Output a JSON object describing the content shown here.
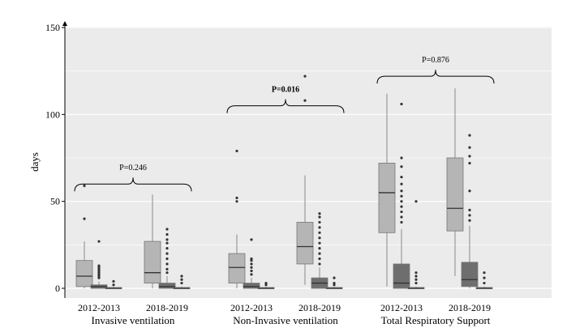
{
  "chart_data": {
    "type": "box",
    "ylabel": "days",
    "ylim": [
      0,
      150
    ],
    "yticks": [
      "0",
      "50",
      "100",
      "150"
    ],
    "grid": true,
    "fill_colors": {
      "light": "#b5b5b5",
      "dark": "#6e6e6e",
      "panel": "#ebebeb",
      "gridline": "#ffffff"
    },
    "groups": [
      {
        "name": "Invasive ventilation",
        "subgroups": [
          "2012-2013",
          "2018-2019"
        ],
        "annotation": "P=0.246",
        "annotation_bold": false,
        "boxes": [
          {
            "subgroup": "2012-2013",
            "fill": "light",
            "whisker_low": 0,
            "q1": 1,
            "median": 7,
            "q3": 16,
            "whisker_high": 27,
            "outliers": [
              40,
              59
            ]
          },
          {
            "subgroup": "2012-2013",
            "fill": "dark",
            "whisker_low": 0,
            "q1": 0,
            "median": 1,
            "q3": 2,
            "whisker_high": 4,
            "outliers": [
              6,
              7,
              8,
              9,
              10,
              11,
              12,
              13,
              27
            ]
          },
          {
            "subgroup": "2012-2013",
            "fill": "light",
            "whisker_low": 0,
            "q1": 0,
            "median": 0,
            "q3": 0.5,
            "whisker_high": 1,
            "outliers": [
              2,
              4
            ]
          },
          {
            "subgroup": "2018-2019",
            "fill": "light",
            "whisker_low": 0,
            "q1": 3,
            "median": 9,
            "q3": 27,
            "whisker_high": 54,
            "outliers": []
          },
          {
            "subgroup": "2018-2019",
            "fill": "dark",
            "whisker_low": 0,
            "q1": 0,
            "median": 1,
            "q3": 3,
            "whisker_high": 7,
            "outliers": [
              9,
              11,
              14,
              17,
              20,
              23,
              26,
              28,
              31,
              34
            ]
          },
          {
            "subgroup": "2018-2019",
            "fill": "light",
            "whisker_low": 0,
            "q1": 0,
            "median": 0,
            "q3": 0.5,
            "whisker_high": 1,
            "outliers": [
              3,
              5,
              7
            ]
          }
        ]
      },
      {
        "name": "Non-Invasive ventilation",
        "subgroups": [
          "2012-2013",
          "2018-2019"
        ],
        "annotation": "P=0.016",
        "annotation_bold": true,
        "boxes": [
          {
            "subgroup": "2012-2013",
            "fill": "light",
            "whisker_low": 0,
            "q1": 3,
            "median": 12,
            "q3": 20,
            "whisker_high": 31,
            "outliers": [
              50,
              52,
              79
            ]
          },
          {
            "subgroup": "2012-2013",
            "fill": "dark",
            "whisker_low": 0,
            "q1": 0,
            "median": 1,
            "q3": 3,
            "whisker_high": 6,
            "outliers": [
              8,
              10,
              12,
              14,
              16,
              17,
              28
            ]
          },
          {
            "subgroup": "2012-2013",
            "fill": "light",
            "whisker_low": 0,
            "q1": 0,
            "median": 0,
            "q3": 0.5,
            "whisker_high": 1,
            "outliers": [
              2,
              3
            ]
          },
          {
            "subgroup": "2018-2019",
            "fill": "light",
            "whisker_low": 2,
            "q1": 14,
            "median": 24,
            "q3": 38,
            "whisker_high": 65,
            "outliers": [
              108,
              122
            ]
          },
          {
            "subgroup": "2018-2019",
            "fill": "dark",
            "whisker_low": 0,
            "q1": 0,
            "median": 3,
            "q3": 6,
            "whisker_high": 12,
            "outliers": [
              14,
              17,
              20,
              23,
              26,
              29,
              32,
              35,
              38,
              41,
              43
            ]
          },
          {
            "subgroup": "2018-2019",
            "fill": "light",
            "whisker_low": 0,
            "q1": 0,
            "median": 0,
            "q3": 0.5,
            "whisker_high": 1,
            "outliers": [
              2,
              3,
              6
            ]
          }
        ]
      },
      {
        "name": "Total Respiratory Support",
        "subgroups": [
          "2012-2013",
          "2018-2019"
        ],
        "annotation": "P=0.876",
        "annotation_bold": false,
        "boxes": [
          {
            "subgroup": "2012-2013",
            "fill": "light",
            "whisker_low": 1,
            "q1": 32,
            "median": 55,
            "q3": 72,
            "whisker_high": 112,
            "outliers": []
          },
          {
            "subgroup": "2012-2013",
            "fill": "dark",
            "whisker_low": 0,
            "q1": 0,
            "median": 3,
            "q3": 14,
            "whisker_high": 34,
            "outliers": [
              38,
              41,
              44,
              47,
              50,
              53,
              56,
              60,
              64,
              70,
              75,
              106
            ]
          },
          {
            "subgroup": "2012-2013",
            "fill": "light",
            "whisker_low": 0,
            "q1": 0,
            "median": 0,
            "q3": 0.5,
            "whisker_high": 1,
            "outliers": [
              3,
              5,
              7,
              9,
              50
            ]
          },
          {
            "subgroup": "2018-2019",
            "fill": "light",
            "whisker_low": 7,
            "q1": 33,
            "median": 46,
            "q3": 75,
            "whisker_high": 115,
            "outliers": []
          },
          {
            "subgroup": "2018-2019",
            "fill": "dark",
            "whisker_low": 0,
            "q1": 1,
            "median": 5,
            "q3": 15,
            "whisker_high": 36,
            "outliers": [
              39,
              42,
              45,
              56,
              72,
              76,
              81,
              88
            ]
          },
          {
            "subgroup": "2018-2019",
            "fill": "light",
            "whisker_low": 0,
            "q1": 0,
            "median": 0,
            "q3": 0.5,
            "whisker_high": 1,
            "outliers": [
              3,
              6,
              9
            ]
          }
        ]
      }
    ]
  }
}
